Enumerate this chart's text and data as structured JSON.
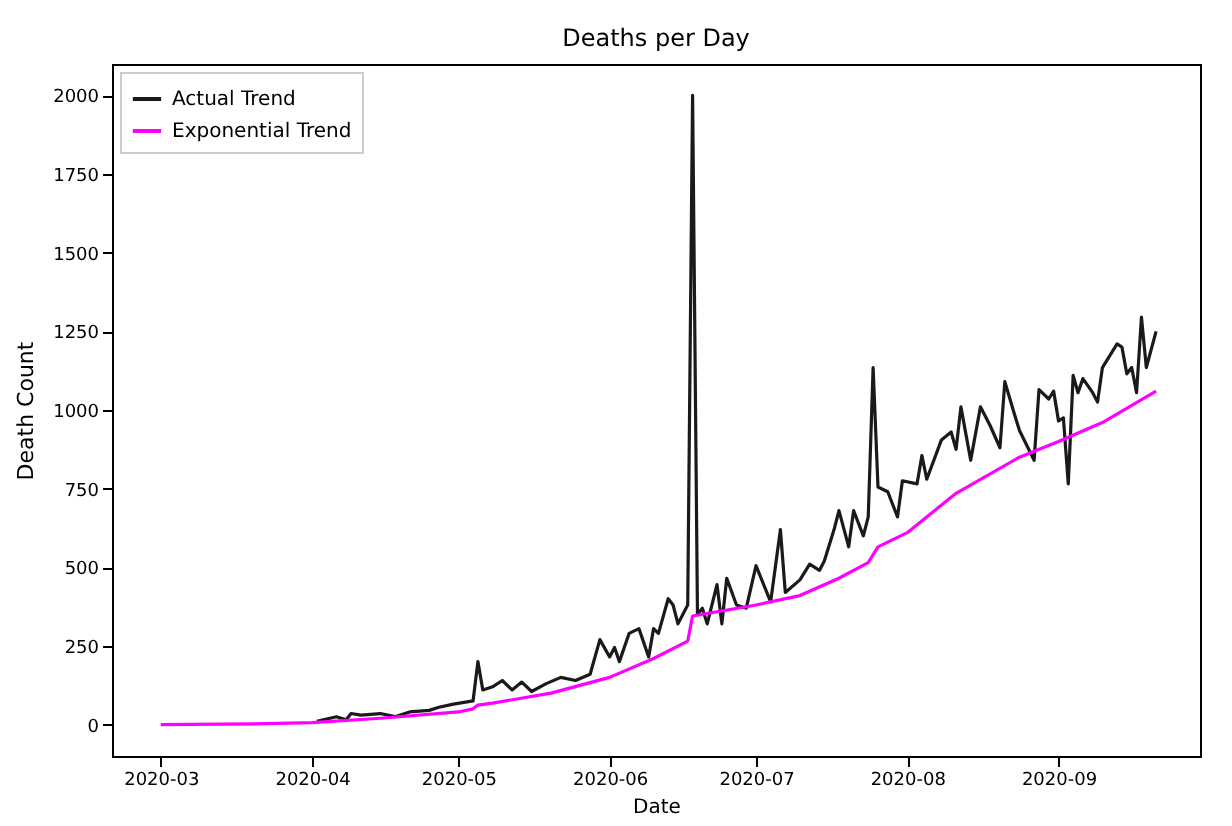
{
  "chart_data": {
    "type": "line",
    "title": "Deaths per Day",
    "xlabel": "Date",
    "ylabel": "Death Count",
    "xlim": [
      "2020-02-20",
      "2020-09-30"
    ],
    "ylim": [
      -100,
      2100
    ],
    "xticks": [
      "2020-03",
      "2020-04",
      "2020-05",
      "2020-06",
      "2020-07",
      "2020-08",
      "2020-09"
    ],
    "yticks": [
      0,
      250,
      500,
      750,
      1000,
      1250,
      1500,
      1750,
      2000
    ],
    "legend": "top left",
    "grid": false,
    "series": [
      {
        "name": "Actual Trend",
        "color": "#1a1a1a",
        "x": [
          "2020-04-02",
          "2020-04-06",
          "2020-04-08",
          "2020-04-09",
          "2020-04-11",
          "2020-04-15",
          "2020-04-18",
          "2020-04-21",
          "2020-04-25",
          "2020-04-27",
          "2020-04-30",
          "2020-05-04",
          "2020-05-05",
          "2020-05-06",
          "2020-05-08",
          "2020-05-10",
          "2020-05-12",
          "2020-05-14",
          "2020-05-16",
          "2020-05-19",
          "2020-05-22",
          "2020-05-25",
          "2020-05-28",
          "2020-05-30",
          "2020-06-01",
          "2020-06-02",
          "2020-06-03",
          "2020-06-05",
          "2020-06-07",
          "2020-06-09",
          "2020-06-10",
          "2020-06-11",
          "2020-06-13",
          "2020-06-14",
          "2020-06-15",
          "2020-06-17",
          "2020-06-18",
          "2020-06-19",
          "2020-06-20",
          "2020-06-21",
          "2020-06-23",
          "2020-06-24",
          "2020-06-25",
          "2020-06-27",
          "2020-06-29",
          "2020-07-01",
          "2020-07-04",
          "2020-07-06",
          "2020-07-07",
          "2020-07-10",
          "2020-07-12",
          "2020-07-14",
          "2020-07-15",
          "2020-07-17",
          "2020-07-18",
          "2020-07-20",
          "2020-07-21",
          "2020-07-23",
          "2020-07-24",
          "2020-07-25",
          "2020-07-26",
          "2020-07-28",
          "2020-07-30",
          "2020-07-31",
          "2020-08-03",
          "2020-08-04",
          "2020-08-05",
          "2020-08-08",
          "2020-08-10",
          "2020-08-11",
          "2020-08-12",
          "2020-08-14",
          "2020-08-16",
          "2020-08-18",
          "2020-08-20",
          "2020-08-21",
          "2020-08-23",
          "2020-08-24",
          "2020-08-27",
          "2020-08-28",
          "2020-08-30",
          "2020-08-31",
          "2020-09-01",
          "2020-09-02",
          "2020-09-03",
          "2020-09-04",
          "2020-09-05",
          "2020-09-06",
          "2020-09-08",
          "2020-09-09",
          "2020-09-10",
          "2020-09-13",
          "2020-09-14",
          "2020-09-15",
          "2020-09-16",
          "2020-09-17",
          "2020-09-18",
          "2020-09-19",
          "2020-09-21"
        ],
        "values": [
          10,
          25,
          15,
          35,
          30,
          35,
          25,
          40,
          45,
          55,
          65,
          75,
          200,
          110,
          120,
          140,
          110,
          135,
          105,
          130,
          150,
          140,
          160,
          270,
          215,
          245,
          200,
          290,
          305,
          215,
          305,
          290,
          400,
          380,
          320,
          380,
          2000,
          350,
          370,
          320,
          445,
          320,
          465,
          380,
          370,
          505,
          390,
          620,
          420,
          460,
          510,
          490,
          520,
          620,
          680,
          565,
          680,
          600,
          660,
          1135,
          755,
          740,
          660,
          775,
          765,
          855,
          780,
          905,
          930,
          875,
          1010,
          840,
          1010,
          950,
          880,
          1090,
          985,
          935,
          840,
          1065,
          1035,
          1060,
          965,
          975,
          765,
          1110,
          1055,
          1100,
          1055,
          1025,
          1135,
          1210,
          1200,
          1115,
          1135,
          1055,
          1295,
          1135,
          1250
        ]
      },
      {
        "name": "Exponential Trend",
        "color": "#ff00ff",
        "x": [
          "2020-03-01",
          "2020-03-20",
          "2020-04-01",
          "2020-04-15",
          "2020-05-01",
          "2020-05-04",
          "2020-05-05",
          "2020-05-08",
          "2020-05-20",
          "2020-06-01",
          "2020-06-10",
          "2020-06-17",
          "2020-06-18",
          "2020-07-01",
          "2020-07-10",
          "2020-07-18",
          "2020-07-24",
          "2020-07-26",
          "2020-08-01",
          "2020-08-11",
          "2020-08-24",
          "2020-09-01",
          "2020-09-10",
          "2020-09-21"
        ],
        "values": [
          0,
          2,
          6,
          20,
          40,
          50,
          62,
          68,
          100,
          150,
          210,
          265,
          345,
          380,
          410,
          465,
          515,
          565,
          610,
          735,
          850,
          900,
          960,
          1060
        ]
      }
    ]
  }
}
